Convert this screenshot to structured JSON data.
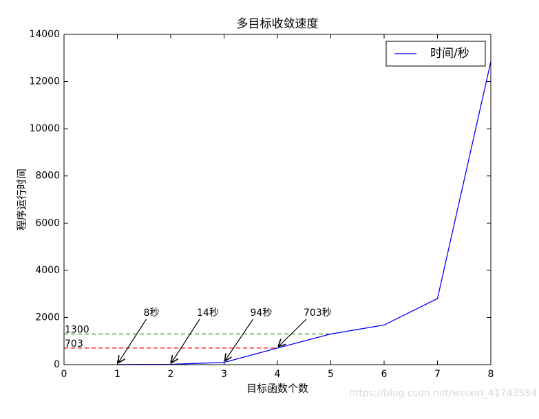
{
  "chart_data": {
    "type": "line",
    "title": "多目标收敛速度",
    "x_label": "目标函数个数",
    "y_label": "程序运行时间",
    "x": [
      1,
      2,
      3,
      4,
      5,
      6,
      7,
      8
    ],
    "series": [
      {
        "name": "时间/秒",
        "color": "#0000ff",
        "values": [
          8,
          14,
          94,
          703,
          1300,
          1680,
          2800,
          12850
        ]
      }
    ],
    "xlim": [
      0,
      8
    ],
    "xticks": [
      0,
      1,
      2,
      3,
      4,
      5,
      6,
      7,
      8
    ],
    "ylim": [
      0,
      14000
    ],
    "yticks": [
      0,
      2000,
      4000,
      6000,
      8000,
      10000,
      12000,
      14000
    ],
    "legend": "upper right",
    "annotations": [
      "8秒",
      "14秒",
      "94秒",
      "703秒"
    ],
    "reference_lines": [
      {
        "value": 1300,
        "color": "#008000",
        "x_end": 5
      },
      {
        "value": 703,
        "color": "#ff0000",
        "x_end": 4
      }
    ],
    "watermark": "https://blog.csdn.net/weixin_41743584"
  }
}
